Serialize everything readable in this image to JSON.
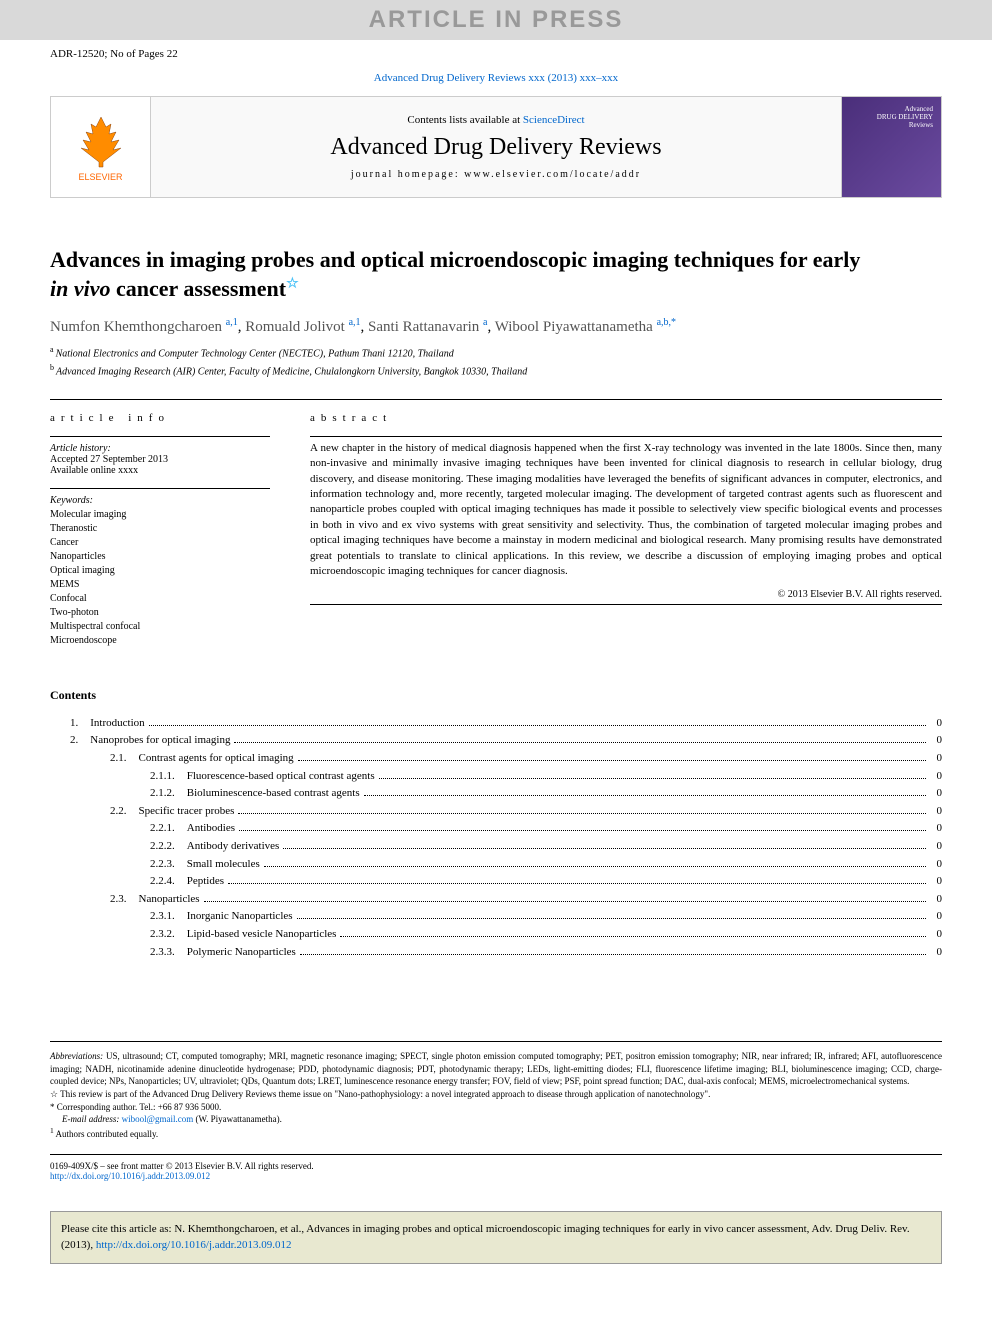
{
  "banner": "ARTICLE IN PRESS",
  "header": {
    "ref": "ADR-12520; No of Pages 22",
    "citation": "Advanced Drug Delivery Reviews xxx (2013) xxx–xxx"
  },
  "journal_header": {
    "contents_prefix": "Contents lists available at ",
    "sciencedirect": "ScienceDirect",
    "journal_title": "Advanced Drug Delivery Reviews",
    "homepage_prefix": "journal homepage: ",
    "homepage": "www.elsevier.com/locate/addr",
    "publisher": "ELSEVIER",
    "cover_text1": "Advanced",
    "cover_text2": "DRUG DELIVERY",
    "cover_text3": "Reviews"
  },
  "title": {
    "line1": "Advances in imaging probes and optical microendoscopic imaging techniques for early",
    "line2_em": "in vivo",
    "line2_rest": " cancer assessment",
    "star": "☆"
  },
  "authors": [
    {
      "name": "Numfon Khemthongcharoen",
      "sup": "a,1"
    },
    {
      "name": "Romuald Jolivot",
      "sup": "a,1"
    },
    {
      "name": "Santi Rattanavarin",
      "sup": "a"
    },
    {
      "name": "Wibool Piyawattanametha",
      "sup": "a,b,*"
    }
  ],
  "affiliations": [
    {
      "sup": "a",
      "text": "National Electronics and Computer Technology Center (NECTEC), Pathum Thani 12120, Thailand"
    },
    {
      "sup": "b",
      "text": "Advanced Imaging Research (AIR) Center, Faculty of Medicine, Chulalongkorn University, Bangkok 10330, Thailand"
    }
  ],
  "article_info": {
    "label": "article info",
    "history_label": "Article history:",
    "accepted": "Accepted 27 September 2013",
    "online": "Available online xxxx",
    "keywords_label": "Keywords:",
    "keywords": [
      "Molecular imaging",
      "Theranostic",
      "Cancer",
      "Nanoparticles",
      "Optical imaging",
      "MEMS",
      "Confocal",
      "Two-photon",
      "Multispectral confocal",
      "Microendoscope"
    ]
  },
  "abstract": {
    "label": "abstract",
    "text": "A new chapter in the history of medical diagnosis happened when the first X-ray technology was invented in the late 1800s. Since then, many non-invasive and minimally invasive imaging techniques have been invented for clinical diagnosis to research in cellular biology, drug discovery, and disease monitoring. These imaging modalities have leveraged the benefits of significant advances in computer, electronics, and information technology and, more recently, targeted molecular imaging. The development of targeted contrast agents such as fluorescent and nanoparticle probes coupled with optical imaging techniques has made it possible to selectively view specific biological events and processes in both in vivo and ex vivo systems with great sensitivity and selectivity. Thus, the combination of targeted molecular imaging probes and optical imaging techniques have become a mainstay in modern medicinal and biological research. Many promising results have demonstrated great potentials to translate to clinical applications. In this review, we describe a discussion of employing imaging probes and optical microendoscopic imaging techniques for cancer diagnosis.",
    "copyright": "© 2013 Elsevier B.V. All rights reserved."
  },
  "contents": {
    "heading": "Contents",
    "items": [
      {
        "level": 1,
        "num": "1.",
        "title": "Introduction",
        "page": "0"
      },
      {
        "level": 1,
        "num": "2.",
        "title": "Nanoprobes for optical imaging",
        "page": "0"
      },
      {
        "level": 2,
        "num": "2.1.",
        "title": "Contrast agents for optical imaging",
        "page": "0"
      },
      {
        "level": 3,
        "num": "2.1.1.",
        "title": "Fluorescence-based optical contrast agents",
        "page": "0"
      },
      {
        "level": 3,
        "num": "2.1.2.",
        "title": "Bioluminescence-based contrast agents",
        "page": "0"
      },
      {
        "level": 2,
        "num": "2.2.",
        "title": "Specific tracer probes",
        "page": "0"
      },
      {
        "level": 3,
        "num": "2.2.1.",
        "title": "Antibodies",
        "page": "0"
      },
      {
        "level": 3,
        "num": "2.2.2.",
        "title": "Antibody derivatives",
        "page": "0"
      },
      {
        "level": 3,
        "num": "2.2.3.",
        "title": "Small molecules",
        "page": "0"
      },
      {
        "level": 3,
        "num": "2.2.4.",
        "title": "Peptides",
        "page": "0"
      },
      {
        "level": 2,
        "num": "2.3.",
        "title": "Nanoparticles",
        "page": "0"
      },
      {
        "level": 3,
        "num": "2.3.1.",
        "title": "Inorganic Nanoparticles",
        "page": "0"
      },
      {
        "level": 3,
        "num": "2.3.2.",
        "title": "Lipid-based vesicle Nanoparticles",
        "page": "0"
      },
      {
        "level": 3,
        "num": "2.3.3.",
        "title": "Polymeric Nanoparticles",
        "page": "0"
      }
    ]
  },
  "footer": {
    "abbrev_label": "Abbreviations:",
    "abbrev_text": " US, ultrasound; CT, computed tomography; MRI, magnetic resonance imaging; SPECT, single photon emission computed tomography; PET, positron emission tomography; NIR, near infrared; IR, infrared; AFI, autofluorescence imaging; NADH, nicotinamide adenine dinucleotide hydrogenase; PDD, photodynamic diagnosis; PDT, photodynamic therapy; LEDs, light-emitting diodes; FLI, fluorescence lifetime imaging; BLI, bioluminescence imaging; CCD, charge-coupled device; NPs, Nanoparticles; UV, ultraviolet; QDs, Quantum dots; LRET, luminescence resonance energy transfer; FOV, field of view; PSF, point spread function; DAC, dual-axis confocal; MEMS, microelectromechanical systems.",
    "review_note_sup": "☆",
    "review_note": " This review is part of the Advanced Drug Delivery Reviews theme issue on \"Nano-pathophysiology: a novel integrated approach to disease through application of nanotechnology\".",
    "corresponding_sup": "*",
    "corresponding": " Corresponding author. Tel.: +66 87 936 5000.",
    "email_label": "E-mail address: ",
    "email": "wibool@gmail.com",
    "email_suffix": " (W. Piyawattanametha).",
    "equal_sup": "1",
    "equal": " Authors contributed equally.",
    "issn": "0169-409X/$ – see front matter © 2013 Elsevier B.V. All rights reserved.",
    "doi": "http://dx.doi.org/10.1016/j.addr.2013.09.012"
  },
  "cite_box": {
    "text": "Please cite this article as: N. Khemthongcharoen, et al., Advances in imaging probes and optical microendoscopic imaging techniques for early in vivo cancer assessment, Adv. Drug Deliv. Rev. (2013), ",
    "link": "http://dx.doi.org/10.1016/j.addr.2013.09.012"
  },
  "colors": {
    "link": "#0066cc",
    "banner_bg": "#d9d9d9",
    "cite_bg": "#e8e8d0",
    "elsevier_orange": "#ff6600",
    "cover_purple": "#4a2e7a"
  }
}
